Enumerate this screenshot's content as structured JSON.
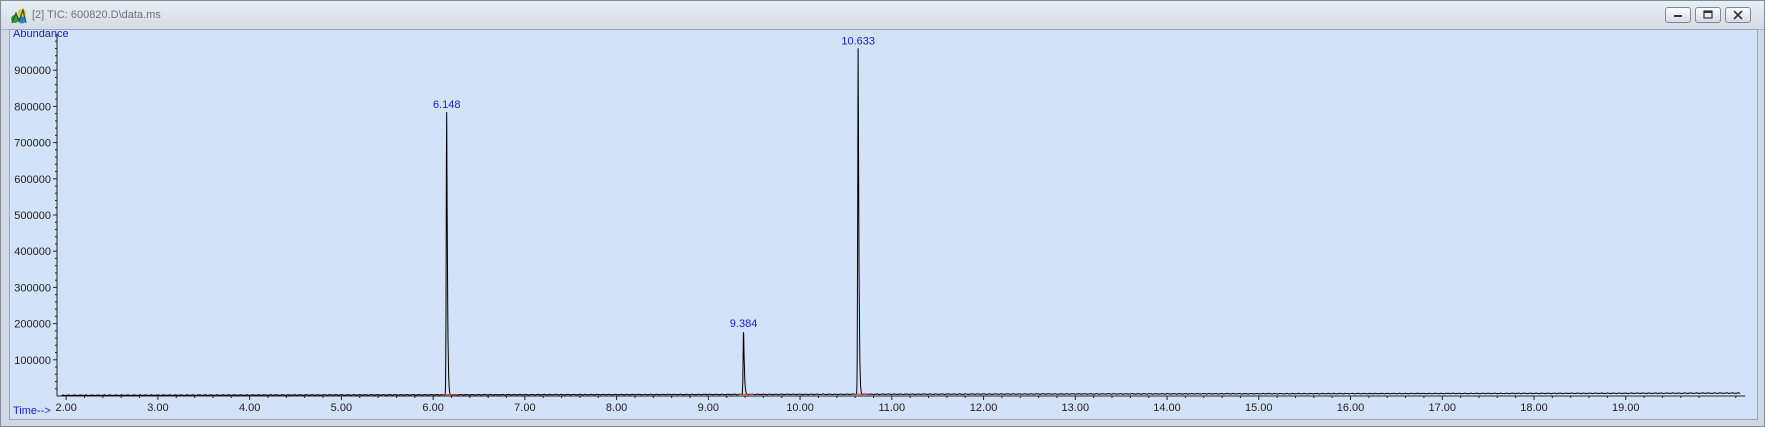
{
  "window": {
    "title": "[2] TIC: 600820.D\\data.ms",
    "icon": "chromatogram-app-icon",
    "buttons": {
      "minimize": "minimize-icon",
      "restore": "restore-icon",
      "close": "close-icon"
    }
  },
  "colors": {
    "plot_background": "#d2e2f8",
    "trace": "#000000",
    "baseline": "#e03030",
    "label": "#1a1ad6"
  },
  "chart_data": {
    "type": "line",
    "ylabel": "Abundance",
    "xlabel": "Time-->",
    "xlim": [
      1.9,
      20.3
    ],
    "ylim": [
      0,
      1000000
    ],
    "x_ticks": [
      "2.00",
      "3.00",
      "4.00",
      "5.00",
      "6.00",
      "7.00",
      "8.00",
      "9.00",
      "10.00",
      "11.00",
      "12.00",
      "13.00",
      "14.00",
      "15.00",
      "16.00",
      "17.00",
      "18.00",
      "19.00"
    ],
    "y_ticks": [
      "100000",
      "200000",
      "300000",
      "400000",
      "500000",
      "600000",
      "700000",
      "800000",
      "900000"
    ],
    "grid": false,
    "series": [
      {
        "peaks": [
          {
            "time": 6.148,
            "abundance": 785000
          },
          {
            "time": 9.384,
            "abundance": 180000
          },
          {
            "time": 10.633,
            "abundance": 960000
          }
        ],
        "baseline_start": 2000,
        "baseline_end": 8000
      }
    ],
    "peak_labels": [
      "6.148",
      "9.384",
      "10.633"
    ]
  }
}
